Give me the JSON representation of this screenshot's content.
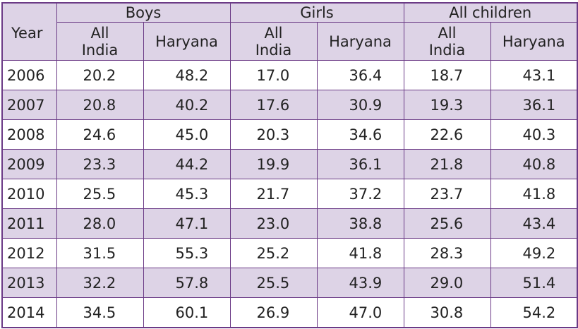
{
  "table": {
    "year_header": "Year",
    "groups": [
      "Boys",
      "Girls",
      "All children"
    ],
    "sub_all_line1": "All",
    "sub_all_line2": "India",
    "sub_haryana": "Haryana",
    "rows": [
      [
        "2006",
        "20.2",
        "48.2",
        "17.0",
        "36.4",
        "18.7",
        "43.1"
      ],
      [
        "2007",
        "20.8",
        "40.2",
        "17.6",
        "30.9",
        "19.3",
        "36.1"
      ],
      [
        "2008",
        "24.6",
        "45.0",
        "20.3",
        "34.6",
        "22.6",
        "40.3"
      ],
      [
        "2009",
        "23.3",
        "44.2",
        "19.9",
        "36.1",
        "21.8",
        "40.8"
      ],
      [
        "2010",
        "25.5",
        "45.3",
        "21.7",
        "37.2",
        "23.7",
        "41.8"
      ],
      [
        "2011",
        "28.0",
        "47.1",
        "23.0",
        "38.8",
        "25.6",
        "43.4"
      ],
      [
        "2012",
        "31.5",
        "55.3",
        "25.2",
        "41.8",
        "28.3",
        "49.2"
      ],
      [
        "2013",
        "32.2",
        "57.8",
        "25.5",
        "43.9",
        "29.0",
        "51.4"
      ],
      [
        "2014",
        "34.5",
        "60.1",
        "26.9",
        "47.0",
        "30.8",
        "54.2"
      ]
    ]
  },
  "colors": {
    "border": "#6b3a86",
    "shade": "#ddd3e6",
    "text": "#222222"
  }
}
